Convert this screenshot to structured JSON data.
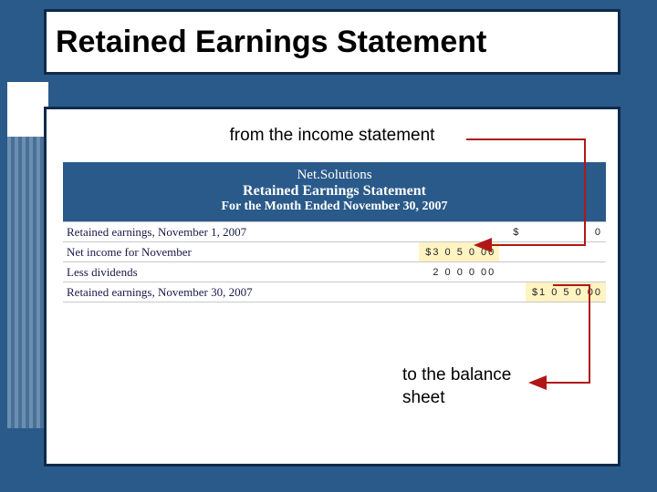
{
  "slide": {
    "title": "Retained Earnings Statement",
    "top_caption": "from the income statement",
    "bottom_caption_l1": "to the balance",
    "bottom_caption_l2": "sheet"
  },
  "statement": {
    "header": {
      "company": "Net.Solutions",
      "title": "Retained Earnings Statement",
      "period": "For the Month Ended November 30, 2007"
    },
    "rows": [
      {
        "label": "Retained earnings, November 1, 2007",
        "col1": "",
        "col2_prefix": "$",
        "col2": "0",
        "hl1": false,
        "hl2": false
      },
      {
        "label": "Net income for November",
        "col1": "$3 0 5 0 00",
        "col2_prefix": "",
        "col2": "",
        "hl1": true,
        "hl2": false
      },
      {
        "label": "Less dividends",
        "col1": "2 0 0 0 00",
        "col2_prefix": "",
        "col2": "",
        "hl1": false,
        "hl2": false
      },
      {
        "label": "Retained earnings, November 30, 2007",
        "col1": "",
        "col2_prefix": "",
        "col2": "$1 0 5 0 00",
        "hl1": false,
        "hl2": true
      }
    ]
  },
  "style": {
    "bg_color": "#2a5a8a",
    "border_color": "#0f2a4a",
    "highlight_bg": "#fff4c2",
    "arrow_color": "#b01818"
  }
}
